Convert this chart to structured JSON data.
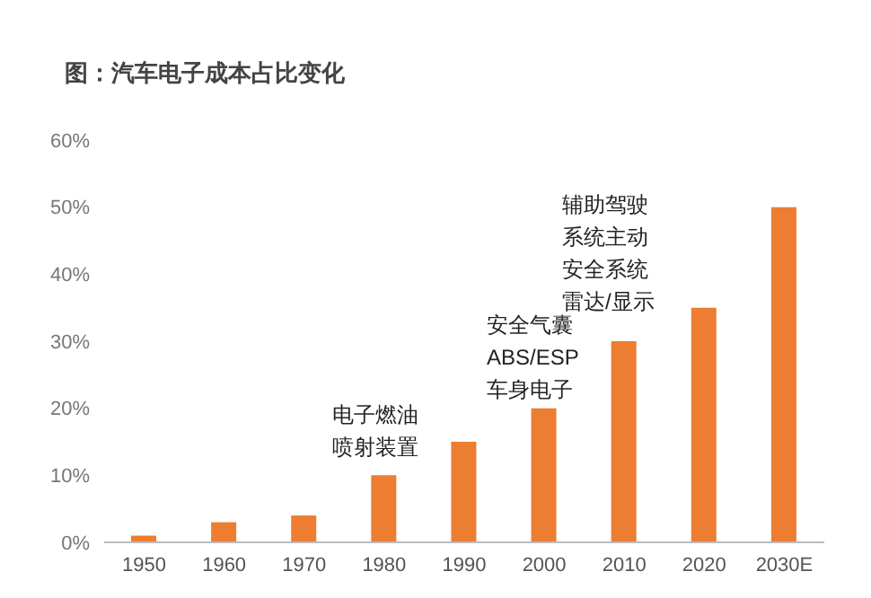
{
  "chart_data": {
    "type": "bar",
    "title": "图：汽车电子成本占比变化",
    "categories": [
      "1950",
      "1960",
      "1970",
      "1980",
      "1990",
      "2000",
      "2010",
      "2020",
      "2030E"
    ],
    "values": [
      1,
      3,
      4,
      10,
      15,
      20,
      30,
      35,
      50
    ],
    "color": "#ed7d31",
    "ylim": [
      0,
      60
    ],
    "yticks": [
      {
        "value": 0,
        "label": "0%"
      },
      {
        "value": 10,
        "label": "10%"
      },
      {
        "value": 20,
        "label": "20%"
      },
      {
        "value": 30,
        "label": "30%"
      },
      {
        "value": 40,
        "label": "40%"
      },
      {
        "value": 50,
        "label": "50%"
      },
      {
        "value": 60,
        "label": "60%"
      }
    ],
    "grid": false,
    "legend": false,
    "annotations": [
      "电子燃油喷射装置",
      "安全气囊ABS/ESP车身电子",
      "辅助驾驶系统主动安全系统雷达/显示"
    ]
  }
}
